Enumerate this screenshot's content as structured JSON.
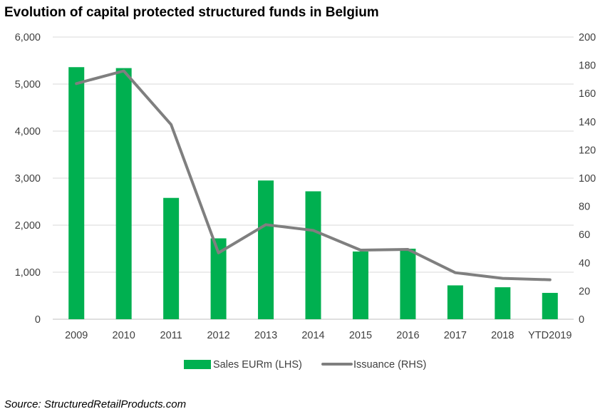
{
  "title": "Evolution of capital protected structured funds in Belgium",
  "source": "Source: StructuredRetailProducts.com",
  "chart_data": {
    "type": "bar",
    "categories": [
      "2009",
      "2010",
      "2011",
      "2012",
      "2013",
      "2014",
      "2015",
      "2016",
      "2017",
      "2018",
      "YTD2019"
    ],
    "series": [
      {
        "name": "Sales EURm (LHS)",
        "type": "bar",
        "axis": "left",
        "color": "#00b050",
        "values": [
          5360,
          5340,
          2580,
          1720,
          2950,
          2720,
          1440,
          1500,
          720,
          680,
          560
        ]
      },
      {
        "name": "Issuance (RHS)",
        "type": "line",
        "axis": "right",
        "color": "#7f7f7f",
        "values": [
          167,
          176,
          138,
          47,
          67,
          63,
          49,
          49.5,
          33,
          29,
          28
        ]
      }
    ],
    "y_left": {
      "ylim": [
        0,
        6000
      ],
      "ticks": [
        0,
        1000,
        2000,
        3000,
        4000,
        5000,
        6000
      ],
      "tick_labels": [
        "0",
        "1,000",
        "2,000",
        "3,000",
        "4,000",
        "5,000",
        "6,000"
      ]
    },
    "y_right": {
      "ylim": [
        0,
        200
      ],
      "ticks": [
        0,
        20,
        40,
        60,
        80,
        100,
        120,
        140,
        160,
        180,
        200
      ],
      "tick_labels": [
        "0",
        "20",
        "40",
        "60",
        "80",
        "100",
        "120",
        "140",
        "160",
        "180",
        "200"
      ]
    },
    "grid": true,
    "legend_position": "bottom"
  }
}
